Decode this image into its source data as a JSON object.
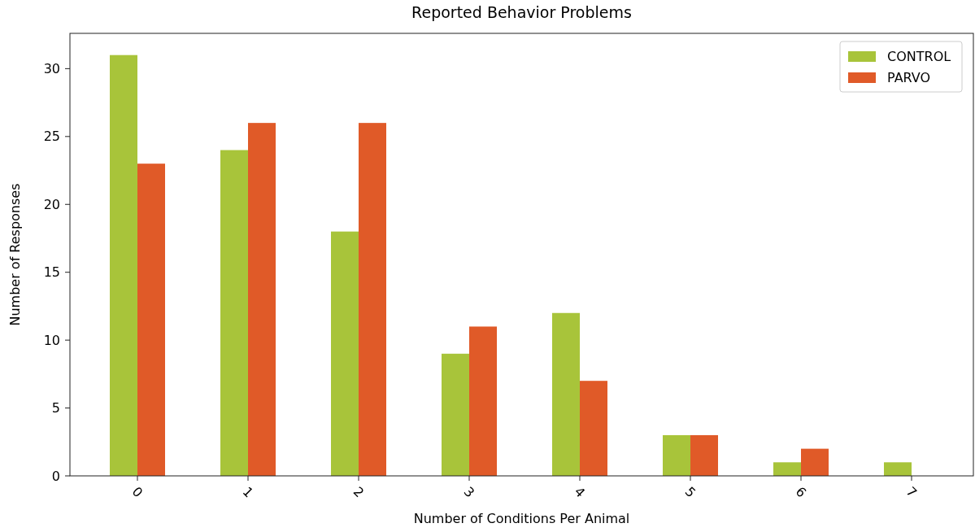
{
  "chart_data": {
    "type": "bar",
    "title": "Reported Behavior Problems",
    "xlabel": "Number of Conditions Per Animal",
    "ylabel": "Number of Responses",
    "categories": [
      "0",
      "1",
      "2",
      "3",
      "4",
      "5",
      "6",
      "7"
    ],
    "series": [
      {
        "name": "CONTROL",
        "color": "#a8c43a",
        "values": [
          31,
          24,
          18,
          9,
          12,
          3,
          1,
          1
        ]
      },
      {
        "name": "PARVO",
        "color": "#e05a28",
        "values": [
          23,
          26,
          26,
          11,
          7,
          3,
          2,
          0
        ]
      }
    ],
    "ylim": [
      0,
      32.6
    ],
    "yticks": [
      0,
      5,
      10,
      15,
      20,
      25,
      30
    ],
    "legend": "top right",
    "grid": false
  }
}
